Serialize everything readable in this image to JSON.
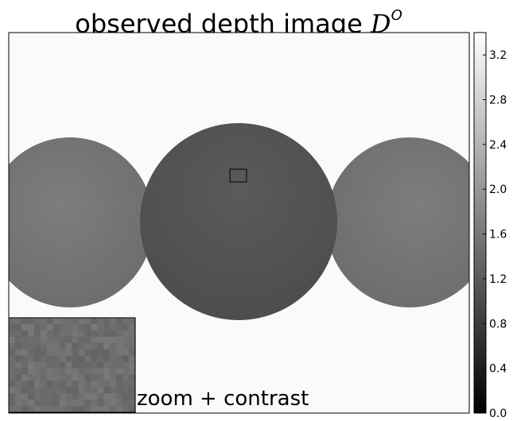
{
  "title": {
    "text": "observed depth image ",
    "math_symbol": "D",
    "math_superscript": "O"
  },
  "inset_label": "zoom + contrast",
  "colorbar": {
    "ticks": [
      "0.0",
      "0.4",
      "0.8",
      "1.2",
      "1.6",
      "2.0",
      "2.4",
      "2.8",
      "3.2"
    ],
    "range": [
      0.0,
      3.4
    ],
    "colormap": "gray"
  },
  "chart_data": {
    "type": "heatmap",
    "title": "observed depth image D^O",
    "background_depth": 3.35,
    "objects": [
      {
        "name": "left sphere",
        "depth_value": 1.55
      },
      {
        "name": "center sphere",
        "depth_value": 1.1
      },
      {
        "name": "right sphere",
        "depth_value": 1.55
      }
    ],
    "colorbar_ticks": [
      0.0,
      0.4,
      0.8,
      1.2,
      1.6,
      2.0,
      2.4,
      2.8,
      3.2
    ],
    "colorbar_range": [
      0.0,
      3.4
    ],
    "annotations": [
      "zoom + contrast"
    ]
  },
  "colors": {
    "background_fill": "#fafafa",
    "left_sphere_fill": "#747474",
    "center_sphere_fill": "#555555",
    "right_sphere_fill": "#747474",
    "inset_fill": "#6e6e6e",
    "frame": "#000000"
  }
}
